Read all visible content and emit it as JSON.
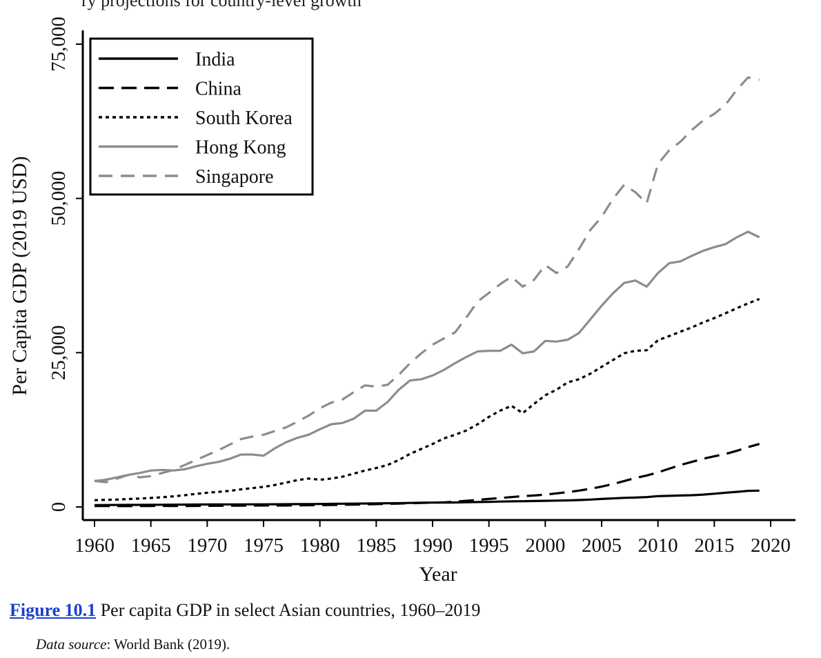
{
  "top_text": "ry projections for country-level growth",
  "caption": {
    "figure_label": "Figure 10.1",
    "text": "Per capita GDP in select Asian countries, 1960–2019"
  },
  "source": {
    "label": "Data source",
    "text": ": World Bank (2019)."
  },
  "chart_data": {
    "type": "line",
    "title": "",
    "xlabel": "Year",
    "ylabel": "Per Capita GDP (2019 USD)",
    "xlim": [
      1960,
      2020
    ],
    "ylim": [
      0,
      75000
    ],
    "xticks": [
      1960,
      1965,
      1970,
      1975,
      1980,
      1985,
      1990,
      1995,
      2000,
      2005,
      2010,
      2015,
      2020
    ],
    "yticks": [
      0,
      25000,
      50000,
      75000
    ],
    "ytick_labels": [
      "0",
      "25,000",
      "50,000",
      "75,000"
    ],
    "legend_position": "top-left",
    "x": [
      1960,
      1961,
      1962,
      1963,
      1964,
      1965,
      1966,
      1967,
      1968,
      1969,
      1970,
      1971,
      1972,
      1973,
      1974,
      1975,
      1976,
      1977,
      1978,
      1979,
      1980,
      1981,
      1982,
      1983,
      1984,
      1985,
      1986,
      1987,
      1988,
      1989,
      1990,
      1991,
      1992,
      1993,
      1994,
      1995,
      1996,
      1997,
      1998,
      1999,
      2000,
      2001,
      2002,
      2003,
      2004,
      2005,
      2006,
      2007,
      2008,
      2009,
      2010,
      2011,
      2012,
      2013,
      2014,
      2015,
      2016,
      2017,
      2018,
      2019
    ],
    "series": [
      {
        "name": "India",
        "color": "#000000",
        "dash": "solid",
        "values": [
          300,
          310,
          320,
          330,
          340,
          350,
          360,
          370,
          380,
          390,
          400,
          405,
          410,
          415,
          420,
          430,
          440,
          450,
          460,
          470,
          480,
          500,
          520,
          540,
          560,
          580,
          600,
          620,
          650,
          680,
          700,
          710,
          730,
          760,
          790,
          830,
          870,
          900,
          930,
          960,
          1000,
          1030,
          1060,
          1120,
          1200,
          1300,
          1390,
          1480,
          1520,
          1600,
          1750,
          1800,
          1850,
          1900,
          2000,
          2150,
          2300,
          2450,
          2600,
          2650
        ]
      },
      {
        "name": "China",
        "color": "#000000",
        "dash": "long-dash",
        "values": [
          150,
          140,
          130,
          135,
          150,
          160,
          170,
          160,
          160,
          170,
          180,
          190,
          200,
          210,
          220,
          230,
          220,
          240,
          260,
          280,
          300,
          320,
          350,
          380,
          420,
          460,
          500,
          550,
          600,
          650,
          700,
          750,
          850,
          1000,
          1150,
          1300,
          1450,
          1600,
          1750,
          1850,
          2000,
          2200,
          2400,
          2650,
          2950,
          3300,
          3700,
          4200,
          4700,
          5100,
          5600,
          6200,
          6800,
          7300,
          7800,
          8200,
          8600,
          9100,
          9700,
          10200
        ]
      },
      {
        "name": "South Korea",
        "color": "#000000",
        "dash": "dotted",
        "values": [
          1100,
          1150,
          1200,
          1280,
          1360,
          1450,
          1580,
          1720,
          1900,
          2120,
          2300,
          2450,
          2600,
          2850,
          3050,
          3250,
          3550,
          3950,
          4350,
          4600,
          4400,
          4600,
          4900,
          5400,
          5900,
          6300,
          6800,
          7600,
          8600,
          9400,
          10200,
          11100,
          11700,
          12400,
          13400,
          14600,
          15600,
          16400,
          15200,
          16700,
          18100,
          19000,
          20200,
          20700,
          21600,
          22700,
          23800,
          24900,
          25300,
          25400,
          27000,
          27700,
          28400,
          29100,
          29900,
          30600,
          31400,
          32200,
          33000,
          33700
        ]
      },
      {
        "name": "Hong Kong",
        "color": "#8c8c8c",
        "dash": "solid",
        "values": [
          4200,
          4400,
          4800,
          5200,
          5500,
          5900,
          6000,
          5900,
          6100,
          6600,
          7000,
          7300,
          7800,
          8500,
          8500,
          8300,
          9500,
          10500,
          11200,
          11700,
          12600,
          13400,
          13600,
          14300,
          15600,
          15600,
          17000,
          19000,
          20500,
          20700,
          21300,
          22200,
          23300,
          24300,
          25200,
          25300,
          25300,
          26300,
          24900,
          25200,
          26900,
          26800,
          27100,
          28200,
          30400,
          32600,
          34600,
          36300,
          36700,
          35700,
          37900,
          39500,
          39800,
          40700,
          41500,
          42100,
          42600,
          43700,
          44600,
          43700
        ]
      },
      {
        "name": "Singapore",
        "color": "#8c8c8c",
        "dash": "dashed",
        "values": [
          4200,
          4000,
          4600,
          5200,
          4800,
          5000,
          5500,
          6000,
          6800,
          7600,
          8400,
          9200,
          10100,
          11000,
          11400,
          11700,
          12300,
          12900,
          13800,
          14800,
          16000,
          16900,
          17400,
          18600,
          19700,
          19500,
          19800,
          21400,
          23300,
          24900,
          26300,
          27300,
          28300,
          30700,
          33300,
          34700,
          36100,
          37300,
          35700,
          36800,
          39200,
          37900,
          39000,
          41800,
          44900,
          47000,
          49900,
          52200,
          51000,
          49200,
          55600,
          57800,
          59200,
          61100,
          62600,
          63700,
          65200,
          67600,
          69600,
          69200
        ]
      }
    ]
  }
}
